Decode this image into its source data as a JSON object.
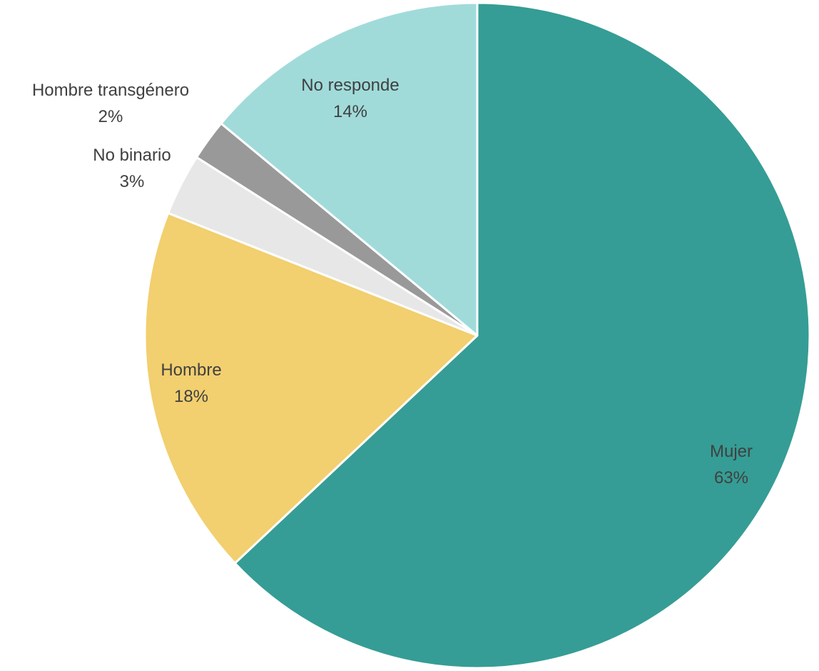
{
  "chart_data": {
    "type": "pie",
    "slices": [
      {
        "label": "Mujer",
        "value": 63,
        "percent_label": "63%",
        "color": "#359D95"
      },
      {
        "label": "Hombre",
        "value": 18,
        "percent_label": "18%",
        "color": "#F2CF6F"
      },
      {
        "label": "No binario",
        "value": 3,
        "percent_label": "3%",
        "color": "#E7E7E7"
      },
      {
        "label": "Hombre transgénero",
        "value": 2,
        "percent_label": "2%",
        "color": "#999999"
      },
      {
        "label": "No responde",
        "value": 14,
        "percent_label": "14%",
        "color": "#A0DBDA"
      }
    ],
    "start_angle": "12 o'clock",
    "direction": "clockwise"
  }
}
